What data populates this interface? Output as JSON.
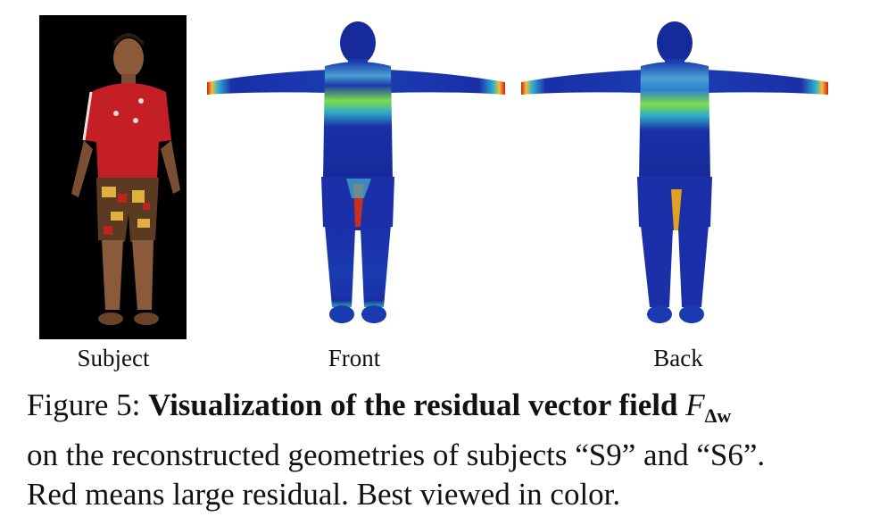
{
  "figure": {
    "panels": [
      {
        "key": "subject",
        "label": "Subject"
      },
      {
        "key": "front",
        "label": "Front"
      },
      {
        "key": "back",
        "label": "Back"
      }
    ],
    "caption": {
      "prefix": "Figure 5:",
      "bold": "Visualization of the residual vector field",
      "symbol": "F",
      "subscript": "Δw",
      "rest_line1": "on the reconstructed geometries of subjects “S9” and “S6”.",
      "rest_line2": "Red means large residual. Best viewed in color."
    },
    "colors": {
      "low": "#1a2fa8",
      "mid": "#7ddc4a",
      "high": "#d21d1d",
      "subject_bg": "#000000",
      "shirt": "#c41f25"
    }
  }
}
